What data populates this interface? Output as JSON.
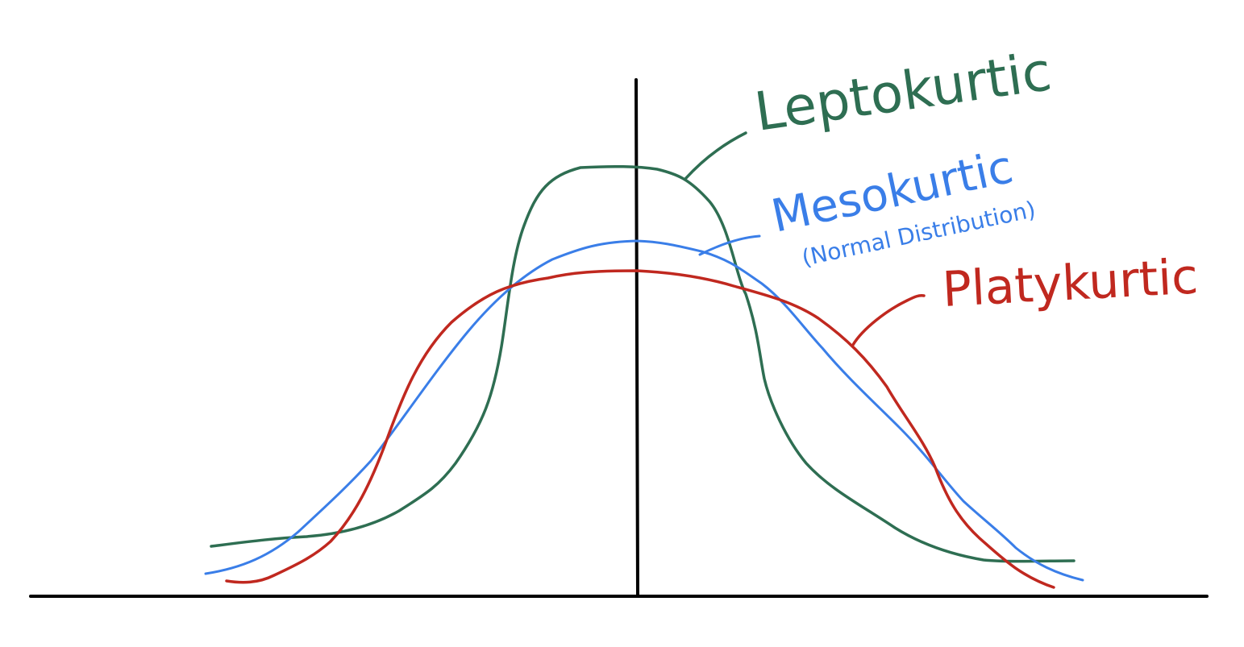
{
  "colors": {
    "background": "#ffffff",
    "axis": "#000000",
    "leptokurtic": "#2e6e52",
    "mesokurtic": "#3a7ee8",
    "platykurtic": "#c0281f"
  },
  "labels": {
    "leptokurtic": "Leptokurtic",
    "mesokurtic": "Mesokurtic",
    "mesokurtic_note": "(Normal Distribution)",
    "platykurtic": "Platykurtic"
  }
}
